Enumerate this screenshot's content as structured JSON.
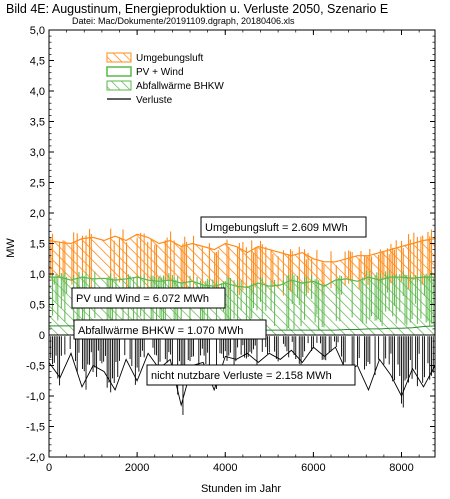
{
  "chart_data": {
    "type": "area",
    "title": "Bild 4E: Augustinum, Energieproduktion u. Verluste 2050, Szenario E",
    "subtitle": "Datei: Mac/Dokumente/20191109.dgraph, 20180406.xls",
    "xlabel": "Stunden im Jahr",
    "ylabel": "MW",
    "xlim": [
      0,
      8760
    ],
    "ylim": [
      -2.0,
      5.0
    ],
    "x_ticks": [
      "0",
      "2000",
      "4000",
      "6000",
      "8000"
    ],
    "y_ticks": [
      "5,0",
      "4,5",
      "4,0",
      "3,5",
      "3,0",
      "2,5",
      "2,0",
      "1,5",
      "1,0",
      "0,5",
      "0",
      "-0,5",
      "-1,0",
      "-1,5",
      "-2,0"
    ],
    "grid": false,
    "legend_position": "top-left",
    "legend": [
      {
        "name": "Umgebungsluft",
        "color": "#ff8c1a"
      },
      {
        "name": "PV + Wind",
        "color": "#5ab84a"
      },
      {
        "name": "Abfallwärme BHKW",
        "color": "#5ab84a"
      },
      {
        "name": "Verluste",
        "color": "#000000"
      }
    ],
    "annotations": [
      "Umgebungsluft = 2.609 MWh",
      "PV und Wind = 6.072 MWh",
      "Abfallwärme BHKW = 1.070 MWh",
      "nicht nutzbare Verluste = 2.158 MWh"
    ],
    "x": [
      0,
      250,
      500,
      750,
      1000,
      1250,
      1500,
      1750,
      2000,
      2250,
      2500,
      2750,
      3000,
      3250,
      3500,
      3750,
      4000,
      4250,
      4500,
      4750,
      5000,
      5250,
      5500,
      5750,
      6000,
      6250,
      6500,
      6750,
      7000,
      7250,
      7500,
      7750,
      8000,
      8250,
      8500,
      8760
    ],
    "series": [
      {
        "name": "Abfallwärme BHKW",
        "color": "#5ab84a",
        "values": [
          0.15,
          0.15,
          0.15,
          0.14,
          0.14,
          0.14,
          0.14,
          0.13,
          0.13,
          0.12,
          0.12,
          0.12,
          0.11,
          0.11,
          0.1,
          0.1,
          0.09,
          0.09,
          0.08,
          0.08,
          0.08,
          0.08,
          0.08,
          0.08,
          0.08,
          0.08,
          0.08,
          0.09,
          0.09,
          0.1,
          0.1,
          0.11,
          0.11,
          0.12,
          0.14,
          0.15
        ]
      },
      {
        "name": "PV + Wind",
        "color": "#5ab84a",
        "values": [
          0.95,
          0.95,
          0.9,
          0.95,
          0.92,
          0.93,
          0.9,
          0.92,
          0.95,
          0.9,
          0.88,
          0.9,
          0.85,
          0.88,
          0.82,
          0.8,
          0.85,
          0.8,
          0.78,
          0.85,
          0.8,
          0.82,
          0.9,
          0.85,
          0.88,
          0.8,
          0.9,
          0.92,
          0.88,
          0.95,
          0.9,
          0.95,
          0.95,
          0.93,
          0.95,
          0.95
        ]
      },
      {
        "name": "Umgebungsluft",
        "color": "#ff8c1a",
        "values": [
          1.55,
          1.52,
          1.5,
          1.58,
          1.6,
          1.55,
          1.62,
          1.55,
          1.65,
          1.6,
          1.5,
          1.55,
          1.45,
          1.5,
          1.45,
          1.4,
          1.5,
          1.45,
          1.35,
          1.45,
          1.4,
          1.35,
          1.3,
          1.35,
          1.25,
          1.2,
          1.2,
          1.25,
          1.3,
          1.3,
          1.35,
          1.4,
          1.45,
          1.5,
          1.55,
          1.58
        ]
      },
      {
        "name": "Verluste",
        "color": "#000000",
        "values": [
          -0.45,
          -0.7,
          -0.3,
          -0.85,
          -0.5,
          -0.6,
          -0.9,
          -0.4,
          -0.75,
          -0.3,
          -0.55,
          -0.4,
          -1.15,
          -0.5,
          -0.45,
          -0.9,
          -0.35,
          -0.4,
          -0.3,
          -0.45,
          -0.3,
          -0.4,
          -0.25,
          -0.45,
          -0.2,
          -0.35,
          -0.2,
          -0.6,
          -0.5,
          -0.9,
          -0.4,
          -0.65,
          -1.0,
          -0.55,
          -0.85,
          -0.5
        ]
      }
    ]
  }
}
